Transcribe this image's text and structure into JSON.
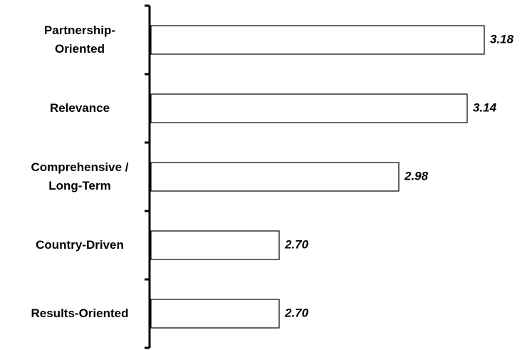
{
  "chart_data": {
    "type": "bar",
    "orientation": "horizontal",
    "categories": [
      "Partnership-\nOriented",
      "Relevance",
      "Comprehensive /\nLong-Term",
      "Country-Driven",
      "Results-Oriented"
    ],
    "values": [
      3.18,
      3.14,
      2.98,
      2.7,
      2.7
    ],
    "value_labels": [
      "3.18",
      "3.14",
      "2.98",
      "2.70",
      "2.70"
    ],
    "color": "#ffffff",
    "xlim": [
      2.4,
      3.2
    ]
  }
}
